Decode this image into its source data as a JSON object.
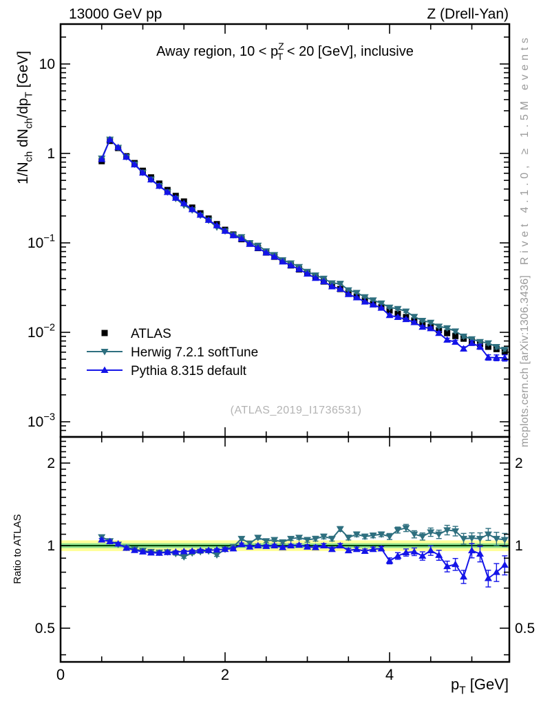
{
  "header": {
    "left": "13000 GeV pp",
    "right": "Z (Drell-Yan)"
  },
  "watermarks": {
    "rivet": "Rivet 4.1.0, ≥ 1.5M events",
    "mcplots": "mcplots.cern.ch [arXiv:1306.3436]",
    "analysis": "(ATLAS_2019_I1736531)"
  },
  "chart_data": {
    "type": "line",
    "title": "Away region, 10 < pT^Z < 20 [GeV], inclusive",
    "title_segments": [
      {
        "t": "Away region, 10 < p"
      },
      {
        "t": "Z",
        "s": "sup"
      },
      {
        "t": "T",
        "s": "subback"
      },
      {
        "t": " < 20 [GeV], inclusive"
      }
    ],
    "xlabel": "pT [GeV]",
    "xlabel_segments": [
      {
        "t": "p"
      },
      {
        "t": "T",
        "s": "sub"
      },
      {
        "t": " [GeV]"
      }
    ],
    "ylabel_main": "1/Nch dNch/dpT [GeV]",
    "ylabel_main_segments": [
      {
        "t": "1/N"
      },
      {
        "t": "ch",
        "s": "sub"
      },
      {
        "t": " dN"
      },
      {
        "t": "ch",
        "s": "sub"
      },
      {
        "t": "/dp"
      },
      {
        "t": "T",
        "s": "sub"
      },
      {
        "t": " [GeV]"
      }
    ],
    "ylabel_ratio": "Ratio to ATLAS",
    "x_range": [
      0,
      5.46
    ],
    "y_scale_main": "log",
    "y_range_main": [
      0.00068,
      28
    ],
    "y_scale_ratio": "log2",
    "y_range_ratio": [
      0.377,
      2.49
    ],
    "grid": false,
    "legend_position": "middle-left",
    "x_ticks_major": [
      {
        "v": 0,
        "label": "0"
      },
      {
        "v": 2,
        "label": "2"
      },
      {
        "v": 4,
        "label": "4"
      }
    ],
    "x_ticks_minor": [
      0.5,
      1,
      1.5,
      2.5,
      3,
      3.5,
      4.5,
      5
    ],
    "y_ticks_main": [
      {
        "v": 10,
        "base": "10",
        "exp": ""
      },
      {
        "v": 1,
        "base": "1",
        "exp": ""
      },
      {
        "v": 0.1,
        "base": "10",
        "exp": "−1"
      },
      {
        "v": 0.01,
        "base": "10",
        "exp": "−2"
      },
      {
        "v": 0.001,
        "base": "10",
        "exp": "−3"
      }
    ],
    "y_ticks_ratio": [
      {
        "v": 2,
        "label": "2"
      },
      {
        "v": 1,
        "label": "1"
      },
      {
        "v": 0.5,
        "label": "0.5"
      }
    ],
    "y_ticks_ratio_minor": [
      0.4,
      0.6,
      0.7,
      0.8,
      0.9,
      1.1,
      1.2,
      1.3,
      1.4,
      1.5,
      1.6,
      1.7,
      1.8,
      1.9,
      2.1,
      2.2,
      2.3,
      2.4
    ],
    "bands": {
      "yellow": {
        "half_width": 0.045,
        "color": "#ffff99"
      },
      "green": {
        "half_width": 0.02,
        "color": "#8fe08f"
      },
      "center_line_color": "#00b400",
      "ref_line_color": "#000000"
    },
    "x": [
      0.5,
      0.6,
      0.7,
      0.8,
      0.9,
      1.0,
      1.1,
      1.2,
      1.3,
      1.4,
      1.5,
      1.6,
      1.7,
      1.8,
      1.9,
      2.0,
      2.1,
      2.2,
      2.3,
      2.4,
      2.5,
      2.6,
      2.7,
      2.8,
      2.9,
      3.0,
      3.1,
      3.2,
      3.3,
      3.4,
      3.5,
      3.6,
      3.7,
      3.8,
      3.9,
      4.0,
      4.1,
      4.2,
      4.3,
      4.4,
      4.5,
      4.6,
      4.7,
      4.8,
      4.9,
      5.0,
      5.1,
      5.2,
      5.3,
      5.4
    ],
    "series": [
      {
        "name": "ATLAS",
        "color": "#000000",
        "marker": "square",
        "role": "reference-data",
        "values": [
          0.82,
          1.38,
          1.15,
          0.93,
          0.78,
          0.64,
          0.54,
          0.46,
          0.39,
          0.335,
          0.29,
          0.248,
          0.214,
          0.187,
          0.162,
          0.14,
          0.124,
          0.11,
          0.098,
          0.0875,
          0.078,
          0.07,
          0.0625,
          0.056,
          0.0505,
          0.0455,
          0.041,
          0.037,
          0.0335,
          0.0305,
          0.0277,
          0.0252,
          0.023,
          0.021,
          0.0192,
          0.0176,
          0.0161,
          0.0148,
          0.0136,
          0.0125,
          0.0115,
          0.0106,
          0.0098,
          0.0091,
          0.0085,
          0.0079,
          0.0074,
          0.0069,
          0.0065,
          0.0061
        ],
        "err_frac": [
          0.008,
          0.008,
          0.008,
          0.008,
          0.008,
          0.008,
          0.008,
          0.008,
          0.008,
          0.008,
          0.008,
          0.008,
          0.008,
          0.008,
          0.008,
          0.008,
          0.008,
          0.008,
          0.008,
          0.008,
          0.008,
          0.008,
          0.008,
          0.008,
          0.008,
          0.01,
          0.01,
          0.01,
          0.01,
          0.01,
          0.01,
          0.01,
          0.01,
          0.01,
          0.01,
          0.015,
          0.015,
          0.02,
          0.02,
          0.02,
          0.025,
          0.025,
          0.03,
          0.03,
          0.03,
          0.035,
          0.035,
          0.04,
          0.04,
          0.045
        ]
      },
      {
        "name": "Herwig 7.2.1 softTune",
        "color": "#2e6f7f",
        "marker": "triangle-down",
        "role": "mc-prediction",
        "ratio": [
          1.075,
          1.04,
          1.01,
          0.985,
          0.97,
          0.958,
          0.95,
          0.945,
          0.948,
          0.935,
          0.91,
          0.94,
          0.95,
          0.955,
          0.925,
          0.97,
          0.99,
          1.06,
          1.02,
          1.07,
          1.04,
          1.05,
          1.03,
          1.06,
          1.07,
          1.05,
          1.06,
          1.08,
          1.06,
          1.15,
          1.07,
          1.1,
          1.08,
          1.09,
          1.1,
          1.08,
          1.14,
          1.16,
          1.1,
          1.08,
          1.12,
          1.1,
          1.14,
          1.13,
          1.06,
          1.065,
          1.06,
          1.1,
          1.06,
          1.05
        ],
        "err_frac": [
          0.012,
          0.012,
          0.012,
          0.012,
          0.012,
          0.012,
          0.012,
          0.012,
          0.012,
          0.012,
          0.012,
          0.012,
          0.012,
          0.012,
          0.012,
          0.015,
          0.015,
          0.015,
          0.015,
          0.015,
          0.015,
          0.015,
          0.015,
          0.015,
          0.015,
          0.02,
          0.02,
          0.02,
          0.02,
          0.02,
          0.02,
          0.02,
          0.02,
          0.02,
          0.02,
          0.025,
          0.025,
          0.03,
          0.03,
          0.03,
          0.035,
          0.035,
          0.04,
          0.04,
          0.045,
          0.045,
          0.05,
          0.05,
          0.055,
          0.055
        ]
      },
      {
        "name": "Pythia 8.315 default",
        "color": "#1414e8",
        "marker": "triangle-up",
        "role": "mc-prediction",
        "ratio": [
          1.05,
          1.035,
          1.015,
          0.98,
          0.962,
          0.95,
          0.942,
          0.94,
          0.945,
          0.948,
          0.952,
          0.955,
          0.96,
          0.962,
          0.965,
          0.97,
          0.975,
          1.01,
          0.99,
          1.0,
          0.995,
          1.0,
          0.985,
          1.0,
          1.005,
          0.99,
          0.985,
          1.0,
          0.97,
          1.0,
          0.96,
          0.97,
          0.955,
          0.97,
          0.975,
          0.88,
          0.917,
          0.944,
          0.95,
          0.917,
          0.96,
          0.923,
          0.84,
          0.855,
          0.77,
          0.96,
          0.933,
          0.76,
          0.8,
          0.85
        ],
        "err_frac": [
          0.01,
          0.01,
          0.01,
          0.01,
          0.01,
          0.01,
          0.01,
          0.01,
          0.01,
          0.01,
          0.01,
          0.01,
          0.01,
          0.01,
          0.01,
          0.012,
          0.012,
          0.012,
          0.012,
          0.012,
          0.012,
          0.012,
          0.012,
          0.012,
          0.012,
          0.018,
          0.018,
          0.018,
          0.018,
          0.018,
          0.018,
          0.018,
          0.018,
          0.018,
          0.018,
          0.025,
          0.028,
          0.03,
          0.032,
          0.035,
          0.04,
          0.042,
          0.045,
          0.05,
          0.055,
          0.06,
          0.065,
          0.07,
          0.075,
          0.08
        ]
      }
    ]
  }
}
